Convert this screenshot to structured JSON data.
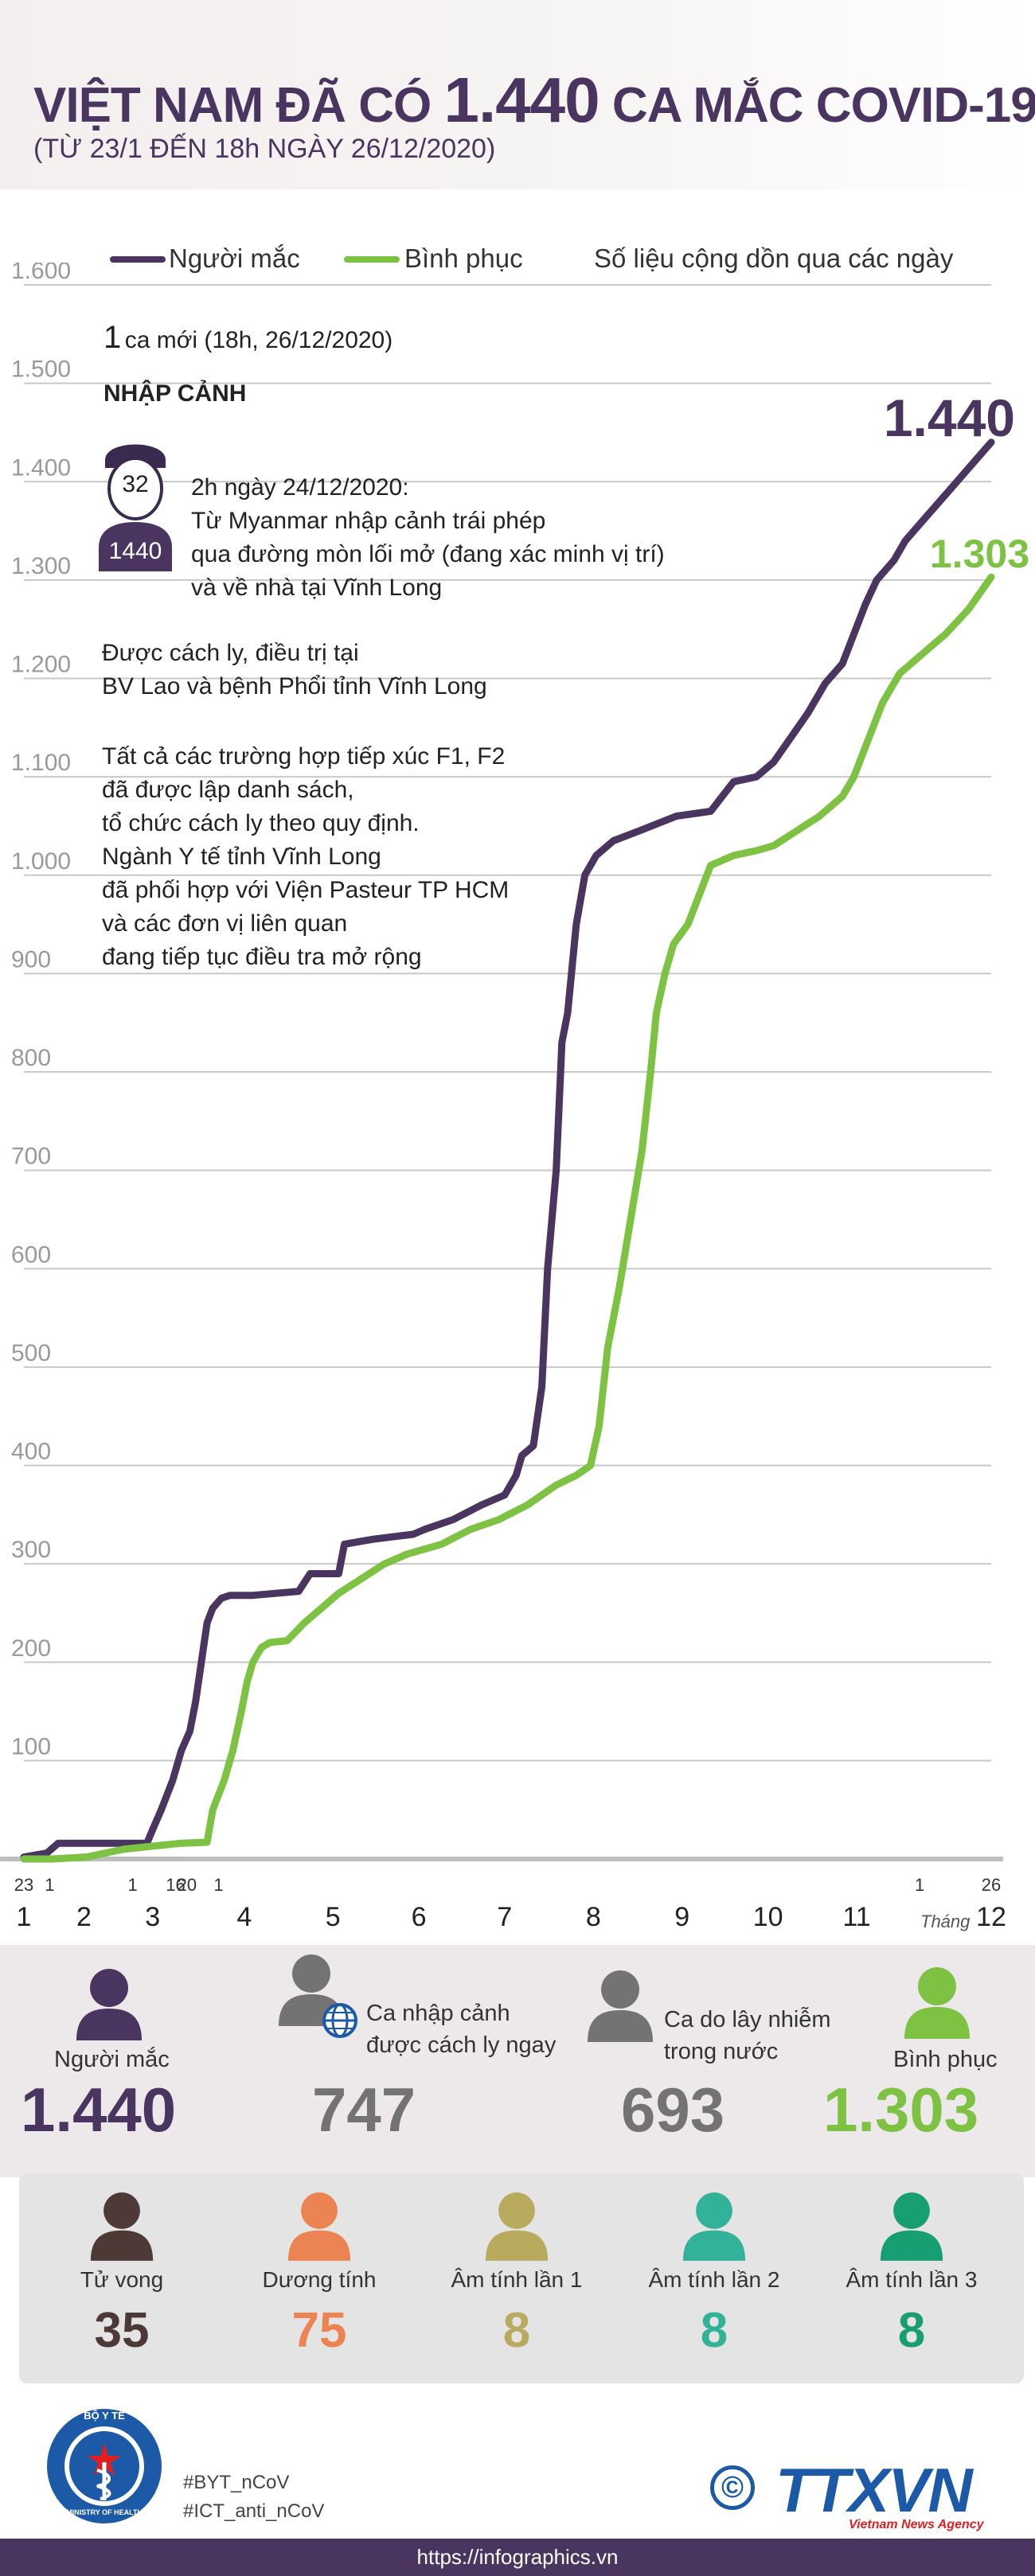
{
  "header": {
    "title_part1": "VIỆT NAM ĐÃ CÓ",
    "title_number": "1.440",
    "title_part2": "CA MẮC COVID-19",
    "subtitle": "(TỪ 23/1 ĐẾN 18h NGÀY 26/12/2020)"
  },
  "legend": {
    "infected": "Người mắc",
    "recovered": "Bình phục",
    "note": "Số liệu cộng dồn qua các ngày"
  },
  "colors": {
    "purple": "#4a3560",
    "green": "#7dc242",
    "gray": "#737373",
    "brown": "#4d3a36",
    "orange": "#ec8352",
    "olive": "#b8ab5d",
    "teal1": "#33b29a",
    "teal2": "#179e72",
    "blue": "#1c5aa8"
  },
  "chart_data": {
    "type": "line",
    "title": "VIỆT NAM ĐÃ CÓ 1.440 CA MẮC COVID-19",
    "ylim": [
      0,
      1600
    ],
    "yticks": [
      "100",
      "200",
      "300",
      "400",
      "500",
      "600",
      "700",
      "800",
      "900",
      "1.000",
      "1.100",
      "1.200",
      "1.300",
      "1.400",
      "1.500",
      "1.600"
    ],
    "ytick_values": [
      100,
      200,
      300,
      400,
      500,
      600,
      700,
      800,
      900,
      1000,
      1100,
      1200,
      1300,
      1400,
      1500,
      1600
    ],
    "xlim": [
      0,
      338
    ],
    "x_day_labels": [
      {
        "label": "23",
        "x": 0
      },
      {
        "label": "1",
        "x": 9
      },
      {
        "label": "1",
        "x": 38
      },
      {
        "label": "16",
        "x": 53
      },
      {
        "label": "20",
        "x": 57
      },
      {
        "label": "1",
        "x": 68
      },
      {
        "label": "1",
        "x": 313
      },
      {
        "label": "26",
        "x": 338
      }
    ],
    "x_month_labels": [
      {
        "label": "1",
        "x": 0
      },
      {
        "label": "2",
        "x": 21
      },
      {
        "label": "3",
        "x": 45
      },
      {
        "label": "4",
        "x": 77
      },
      {
        "label": "5",
        "x": 108
      },
      {
        "label": "6",
        "x": 138
      },
      {
        "label": "7",
        "x": 168
      },
      {
        "label": "8",
        "x": 199
      },
      {
        "label": "9",
        "x": 230
      },
      {
        "label": "10",
        "x": 260
      },
      {
        "label": "11",
        "x": 291
      },
      {
        "label": "12",
        "x": 338
      }
    ],
    "x_axis_caption": "Tháng",
    "series": [
      {
        "name": "Người mắc",
        "color": "#4a3560",
        "end_label": "1.440",
        "points": [
          [
            0,
            2
          ],
          [
            8,
            6
          ],
          [
            12,
            16
          ],
          [
            25,
            16
          ],
          [
            43,
            16
          ],
          [
            45,
            30
          ],
          [
            48,
            50
          ],
          [
            52,
            80
          ],
          [
            55,
            110
          ],
          [
            58,
            130
          ],
          [
            60,
            160
          ],
          [
            62,
            200
          ],
          [
            64,
            240
          ],
          [
            66,
            255
          ],
          [
            69,
            265
          ],
          [
            72,
            268
          ],
          [
            80,
            268
          ],
          [
            88,
            270
          ],
          [
            96,
            272
          ],
          [
            100,
            290
          ],
          [
            110,
            290
          ],
          [
            112,
            320
          ],
          [
            122,
            325
          ],
          [
            136,
            330
          ],
          [
            140,
            335
          ],
          [
            150,
            345
          ],
          [
            160,
            360
          ],
          [
            168,
            370
          ],
          [
            172,
            390
          ],
          [
            174,
            410
          ],
          [
            178,
            420
          ],
          [
            181,
            480
          ],
          [
            183,
            600
          ],
          [
            186,
            700
          ],
          [
            188,
            830
          ],
          [
            190,
            860
          ],
          [
            193,
            950
          ],
          [
            196,
            1000
          ],
          [
            200,
            1020
          ],
          [
            206,
            1035
          ],
          [
            215,
            1045
          ],
          [
            228,
            1060
          ],
          [
            240,
            1065
          ],
          [
            248,
            1095
          ],
          [
            256,
            1100
          ],
          [
            262,
            1115
          ],
          [
            268,
            1140
          ],
          [
            274,
            1165
          ],
          [
            280,
            1195
          ],
          [
            286,
            1215
          ],
          [
            290,
            1245
          ],
          [
            294,
            1275
          ],
          [
            298,
            1300
          ],
          [
            304,
            1320
          ],
          [
            308,
            1340
          ],
          [
            314,
            1360
          ],
          [
            320,
            1380
          ],
          [
            326,
            1400
          ],
          [
            332,
            1420
          ],
          [
            338,
            1440
          ]
        ]
      },
      {
        "name": "Bình phục",
        "color": "#7dc242",
        "end_label": "1.303",
        "points": [
          [
            0,
            0
          ],
          [
            10,
            0
          ],
          [
            22,
            2
          ],
          [
            35,
            10
          ],
          [
            55,
            16
          ],
          [
            64,
            17
          ],
          [
            66,
            50
          ],
          [
            70,
            80
          ],
          [
            73,
            110
          ],
          [
            76,
            150
          ],
          [
            78,
            180
          ],
          [
            80,
            200
          ],
          [
            83,
            215
          ],
          [
            86,
            220
          ],
          [
            92,
            222
          ],
          [
            98,
            240
          ],
          [
            104,
            255
          ],
          [
            110,
            270
          ],
          [
            118,
            285
          ],
          [
            126,
            300
          ],
          [
            134,
            310
          ],
          [
            146,
            320
          ],
          [
            156,
            335
          ],
          [
            166,
            345
          ],
          [
            176,
            360
          ],
          [
            186,
            380
          ],
          [
            193,
            390
          ],
          [
            198,
            400
          ],
          [
            201,
            440
          ],
          [
            204,
            520
          ],
          [
            208,
            580
          ],
          [
            212,
            650
          ],
          [
            216,
            720
          ],
          [
            219,
            800
          ],
          [
            221,
            860
          ],
          [
            224,
            900
          ],
          [
            227,
            930
          ],
          [
            232,
            950
          ],
          [
            236,
            980
          ],
          [
            240,
            1010
          ],
          [
            248,
            1020
          ],
          [
            256,
            1025
          ],
          [
            262,
            1030
          ],
          [
            270,
            1045
          ],
          [
            278,
            1060
          ],
          [
            286,
            1080
          ],
          [
            290,
            1100
          ],
          [
            296,
            1145
          ],
          [
            300,
            1175
          ],
          [
            306,
            1205
          ],
          [
            310,
            1215
          ],
          [
            316,
            1230
          ],
          [
            322,
            1245
          ],
          [
            330,
            1270
          ],
          [
            338,
            1303
          ]
        ]
      }
    ]
  },
  "notes": {
    "new_count": "1",
    "new_text": "ca mới (18h, 26/12/2020)",
    "category": "NHẬP CẢNH",
    "patient_age": "32",
    "patient_id": "1440",
    "desc_lines": [
      "2h ngày 24/12/2020:",
      "Từ Myanmar nhập cảnh trái phép",
      "qua đường mòn lối mở (đang xác minh vị trí)",
      "và về nhà tại Vĩnh Long"
    ],
    "treat_lines": [
      "Được cách ly, điều trị tại",
      "BV Lao và bệnh Phổi tỉnh Vĩnh Long"
    ],
    "contact_lines": [
      "Tất cả các trường hợp tiếp xúc F1, F2",
      "đã được lập danh sách,",
      "tổ chức cách ly theo quy định.",
      "Ngành Y tế tỉnh Vĩnh Long",
      "đã phối hợp với Viện Pasteur TP HCM",
      "và các đơn vị liên quan",
      "đang tiếp tục điều tra mở rộng"
    ]
  },
  "stats": {
    "infected_label": "Người mắc",
    "infected_value": "1.440",
    "imported_label_1": "Ca nhập cảnh",
    "imported_label_2": "được cách ly ngay",
    "imported_value": "747",
    "local_label_1": "Ca do lây nhiễm",
    "local_label_2": "trong nước",
    "local_value": "693",
    "recovered_label": "Bình phục",
    "recovered_value": "1.303"
  },
  "stats2": [
    {
      "label": "Tử vong",
      "value": "35",
      "color": "#4d3a36"
    },
    {
      "label": "Dương tính",
      "value": "75",
      "color": "#ec8352"
    },
    {
      "label": "Âm tính lần 1",
      "value": "8",
      "color": "#b8ab5d"
    },
    {
      "label": "Âm tính lần 2",
      "value": "8",
      "color": "#33b29a"
    },
    {
      "label": "Âm tính lần 3",
      "value": "8",
      "color": "#179e72"
    }
  ],
  "footer": {
    "logo_top_text": "BỘ Y TẾ",
    "logo_bottom_text": "MINISTRY OF HEALTH",
    "tag1": "#BYT_nCoV",
    "tag2": "#ICT_anti_nCoV",
    "copyright_symbol": "©",
    "agency": "TTXVN",
    "agency_sub": "Vietnam News Agency",
    "url": "https://infographics.vn"
  }
}
